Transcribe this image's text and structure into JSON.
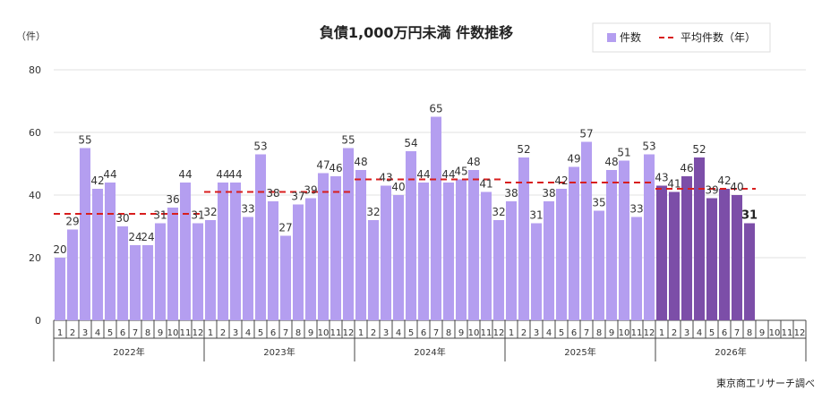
{
  "chart_data": {
    "type": "bar",
    "title": "負債1,000万円未満 件数推移",
    "ylabel": "（件）",
    "ylim": [
      0,
      80
    ],
    "yticks": [
      0,
      20,
      40,
      60,
      80
    ],
    "grid": true,
    "legend_position": "top-right",
    "source": "東京商工リサーチ調べ",
    "legend": {
      "bars": "件数",
      "avg": "平均件数（年）"
    },
    "colors": {
      "bar": "#b49ef0",
      "bar_current": "#7c4ea8",
      "avg": "#d81e1e"
    },
    "years": [
      {
        "label": "2022年",
        "values": [
          20,
          29,
          55,
          42,
          44,
          30,
          24,
          24,
          31,
          36,
          44,
          31
        ],
        "average": 34
      },
      {
        "label": "2023年",
        "values": [
          32,
          44,
          44,
          33,
          53,
          38,
          27,
          37,
          39,
          47,
          46,
          55
        ],
        "average": 41
      },
      {
        "label": "2024年",
        "values": [
          48,
          32,
          43,
          40,
          54,
          44,
          65,
          44,
          45,
          48,
          41,
          32
        ],
        "average": 45
      },
      {
        "label": "2025年",
        "values": [
          38,
          52,
          31,
          38,
          42,
          49,
          57,
          35,
          48,
          51,
          33,
          53
        ],
        "average": 44
      },
      {
        "label": "2026年",
        "values": [
          43,
          41,
          46,
          52,
          39,
          42,
          40,
          31,
          null,
          null,
          null,
          null
        ],
        "average": 42
      }
    ],
    "month_labels": [
      "1",
      "2",
      "3",
      "4",
      "5",
      "6",
      "7",
      "8",
      "9",
      "10",
      "11",
      "12"
    ]
  }
}
